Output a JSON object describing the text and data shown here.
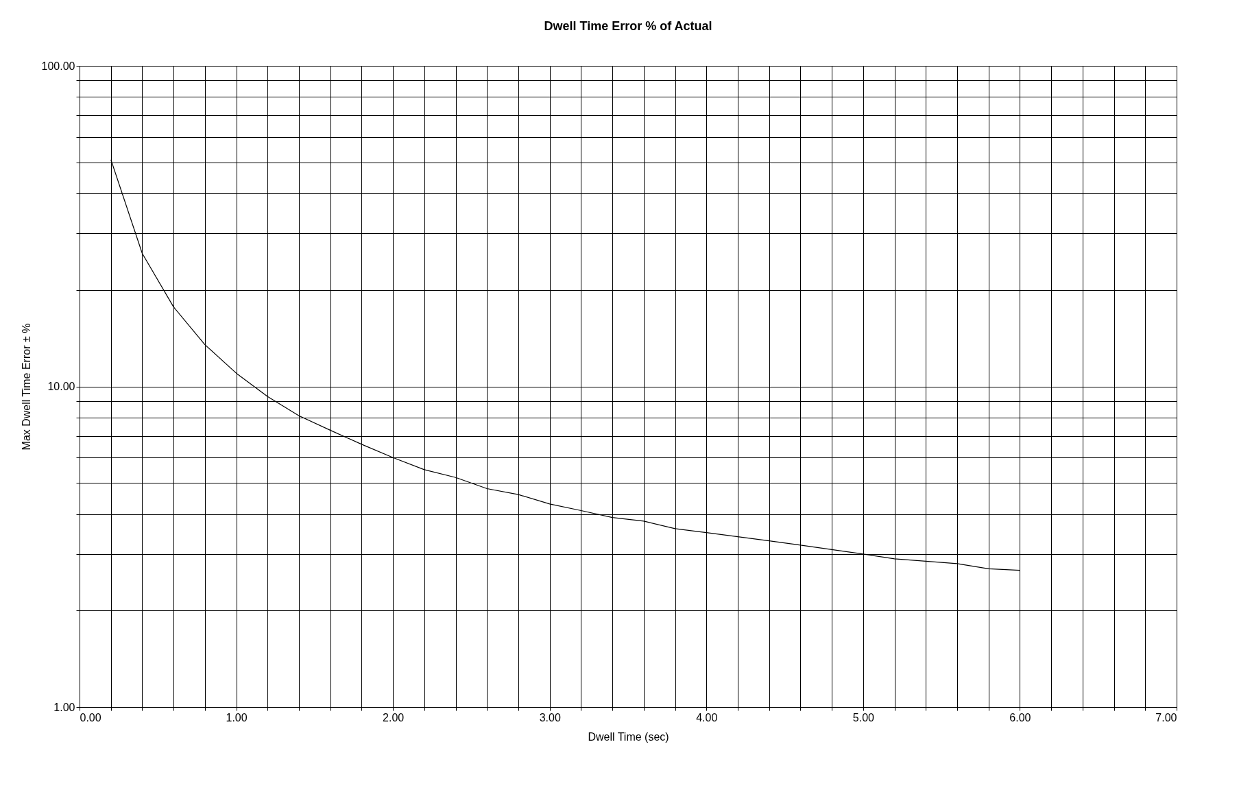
{
  "chart_data": {
    "type": "line",
    "title": "Dwell Time Error % of Actual",
    "xlabel": "Dwell Time (sec)",
    "ylabel": "Max Dwell Time Error ± %",
    "log": "y",
    "grid": true,
    "marker": "none",
    "line_style": "solid",
    "xlim": [
      0,
      7
    ],
    "ylim": [
      1,
      100
    ],
    "xticks": [
      {
        "value": 0,
        "label": "0.00"
      },
      {
        "value": 0.2,
        "label": null
      },
      {
        "value": 0.4,
        "label": null
      },
      {
        "value": 0.6,
        "label": null
      },
      {
        "value": 0.8,
        "label": null
      },
      {
        "value": 1,
        "label": "1.00"
      },
      {
        "value": 1.2,
        "label": null
      },
      {
        "value": 1.4,
        "label": null
      },
      {
        "value": 1.6,
        "label": null
      },
      {
        "value": 1.8,
        "label": null
      },
      {
        "value": 2,
        "label": "2.00"
      },
      {
        "value": 2.2,
        "label": null
      },
      {
        "value": 2.4,
        "label": null
      },
      {
        "value": 2.6,
        "label": null
      },
      {
        "value": 2.8,
        "label": null
      },
      {
        "value": 3,
        "label": "3.00"
      },
      {
        "value": 3.2,
        "label": null
      },
      {
        "value": 3.4,
        "label": null
      },
      {
        "value": 3.6,
        "label": null
      },
      {
        "value": 3.8,
        "label": null
      },
      {
        "value": 4,
        "label": "4.00"
      },
      {
        "value": 4.2,
        "label": null
      },
      {
        "value": 4.4,
        "label": null
      },
      {
        "value": 4.6,
        "label": null
      },
      {
        "value": 4.8,
        "label": null
      },
      {
        "value": 5,
        "label": "5.00"
      },
      {
        "value": 5.2,
        "label": null
      },
      {
        "value": 5.4,
        "label": null
      },
      {
        "value": 5.6,
        "label": null
      },
      {
        "value": 5.8,
        "label": null
      },
      {
        "value": 6,
        "label": "6.00"
      },
      {
        "value": 6.2,
        "label": null
      },
      {
        "value": 6.4,
        "label": null
      },
      {
        "value": 6.6,
        "label": null
      },
      {
        "value": 6.8,
        "label": null
      },
      {
        "value": 7,
        "label": "7.00"
      }
    ],
    "yticks": [
      {
        "value": 1,
        "label": "1.00"
      },
      {
        "value": 2,
        "label": null
      },
      {
        "value": 3,
        "label": null
      },
      {
        "value": 4,
        "label": null
      },
      {
        "value": 5,
        "label": null
      },
      {
        "value": 6,
        "label": null
      },
      {
        "value": 7,
        "label": null
      },
      {
        "value": 8,
        "label": null
      },
      {
        "value": 9,
        "label": null
      },
      {
        "value": 10,
        "label": "10.00"
      },
      {
        "value": 20,
        "label": null
      },
      {
        "value": 30,
        "label": null
      },
      {
        "value": 40,
        "label": null
      },
      {
        "value": 50,
        "label": null
      },
      {
        "value": 60,
        "label": null
      },
      {
        "value": 70,
        "label": null
      },
      {
        "value": 80,
        "label": null
      },
      {
        "value": 90,
        "label": null
      },
      {
        "value": 100,
        "label": "100.00"
      }
    ],
    "x": [
      0.2,
      0.4,
      0.6,
      0.8,
      1.0,
      1.2,
      1.4,
      1.6,
      1.8,
      2.0,
      2.2,
      2.4,
      2.6,
      2.8,
      3.0,
      3.2,
      3.4,
      3.6,
      3.8,
      4.0,
      4.2,
      4.4,
      4.6,
      4.8,
      5.0,
      5.2,
      5.4,
      5.6,
      5.8,
      6.0
    ],
    "series": [
      {
        "color": "#000000",
        "values": [
          51,
          26,
          17.7,
          13.5,
          11,
          9.3,
          8.1,
          7.3,
          6.6,
          6.0,
          5.5,
          5.2,
          4.8,
          4.6,
          4.3,
          4.1,
          3.9,
          3.8,
          3.6,
          3.5,
          3.4,
          3.3,
          3.2,
          3.1,
          3.0,
          2.9,
          2.85,
          2.8,
          2.7,
          2.67
        ]
      }
    ]
  }
}
